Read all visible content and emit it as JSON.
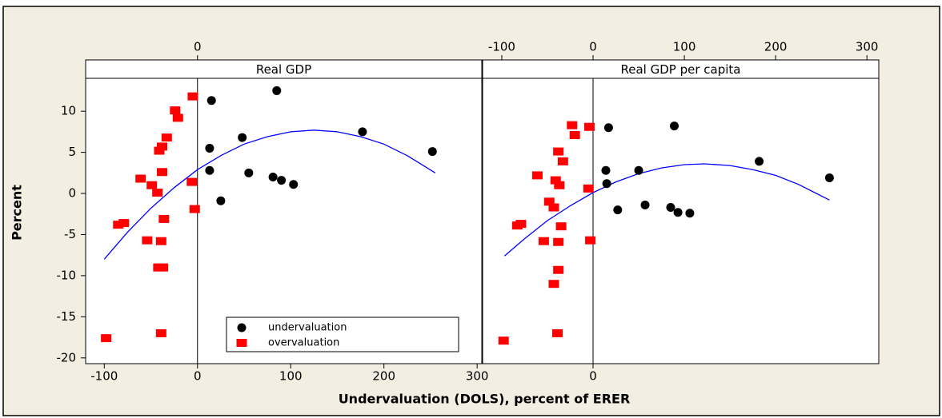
{
  "chart_data": {
    "type": "scatter",
    "xlabel": "Undervaluation (DOLS), percent of ERER",
    "ylabel": "Percent",
    "ylim": [
      -20.7,
      14
    ],
    "yticks": [
      -20,
      -15,
      -10,
      -5,
      0,
      5,
      10
    ],
    "legend": "lower center",
    "fit_color": "#0000ff",
    "groups": [
      {
        "name": "undervaluation",
        "color": "#000000"
      },
      {
        "name": "overvaluation",
        "color": "#ff0000"
      }
    ],
    "panels": [
      {
        "title": "Real GDP",
        "xlim": [
          -120,
          305
        ],
        "xticks_bottom": [
          -100,
          0,
          100,
          200,
          300
        ],
        "xticks_top": [
          0
        ],
        "series": [
          {
            "x": [
              15,
              85,
              13,
              48,
              13,
              25,
              55,
              81,
              90,
              103,
              177,
              252
            ],
            "values": [
              11.3,
              12.5,
              5.5,
              6.8,
              2.8,
              -0.9,
              2.5,
              2.0,
              1.6,
              1.1,
              7.5,
              5.1
            ]
          },
          {
            "x": [
              -5,
              -24,
              -21,
              -33,
              -38,
              -41,
              -61,
              -38,
              -49,
              -43,
              -6,
              -3,
              -36,
              -79,
              -85,
              -54,
              -39,
              -42,
              -37,
              -39,
              -98
            ],
            "values": [
              11.8,
              10.1,
              9.2,
              6.8,
              5.7,
              5.2,
              1.8,
              2.6,
              1.0,
              0.1,
              1.4,
              -1.9,
              -3.1,
              -3.6,
              -3.8,
              -5.7,
              -5.8,
              -9.0,
              -9.0,
              -17.0,
              -17.6
            ]
          }
        ],
        "fit": {
          "x": [
            -100,
            -75,
            -50,
            -25,
            0,
            25,
            50,
            75,
            100,
            125,
            150,
            175,
            200,
            225,
            255
          ],
          "values": [
            -8.0,
            -4.7,
            -1.8,
            0.7,
            2.9,
            4.6,
            6.0,
            6.9,
            7.5,
            7.7,
            7.5,
            6.9,
            6.0,
            4.6,
            2.5
          ]
        }
      },
      {
        "title": "Real GDP per capita",
        "xlim": [
          -121,
          313
        ],
        "xticks_bottom": [
          0
        ],
        "xticks_top": [
          -100,
          0,
          100,
          200,
          300
        ],
        "series": [
          {
            "x": [
              17,
              89,
              14,
              15,
              50,
              27,
              57,
              85,
              93,
              106,
              182,
              259
            ],
            "values": [
              8.0,
              8.2,
              2.8,
              1.2,
              2.8,
              -2.0,
              -1.4,
              -1.7,
              -2.3,
              -2.4,
              3.9,
              1.9
            ]
          },
          {
            "x": [
              -23,
              -4,
              -20,
              -38,
              -33,
              -61,
              -41,
              -37,
              -48,
              -43,
              -5,
              -35,
              -79,
              -83,
              -54,
              -38,
              -3,
              -38,
              -43,
              -39,
              -98
            ],
            "values": [
              8.3,
              8.1,
              7.1,
              5.1,
              3.9,
              2.2,
              1.6,
              1.0,
              -1.0,
              -1.7,
              0.6,
              -4.0,
              -3.7,
              -3.9,
              -5.8,
              -5.9,
              -5.7,
              -9.3,
              -11.0,
              -17.0,
              -17.9
            ]
          }
        ],
        "fit": {
          "x": [
            -97,
            -75,
            -50,
            -25,
            0,
            25,
            50,
            75,
            100,
            122,
            150,
            175,
            200,
            225,
            259
          ],
          "values": [
            -7.6,
            -5.5,
            -3.3,
            -1.5,
            0.1,
            1.4,
            2.4,
            3.1,
            3.5,
            3.6,
            3.4,
            2.9,
            2.2,
            1.1,
            -0.8
          ]
        }
      }
    ]
  }
}
